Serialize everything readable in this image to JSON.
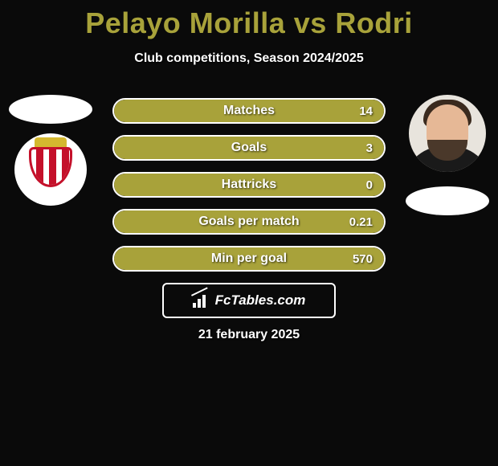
{
  "title_color": "#a8a23a",
  "background_color": "#0a0a0a",
  "bar_fill_color": "#a8a23a",
  "bar_border_color": "#ffffff",
  "text_color": "#ffffff",
  "title": "Pelayo Morilla vs Rodri",
  "subtitle": "Club competitions, Season 2024/2025",
  "stats": [
    {
      "label": "Matches",
      "value": "14",
      "fill_pct": 100
    },
    {
      "label": "Goals",
      "value": "3",
      "fill_pct": 100
    },
    {
      "label": "Hattricks",
      "value": "0",
      "fill_pct": 100
    },
    {
      "label": "Goals per match",
      "value": "0.21",
      "fill_pct": 100
    },
    {
      "label": "Min per goal",
      "value": "570",
      "fill_pct": 100
    }
  ],
  "brand": "FcTables.com",
  "date": "21 february 2025",
  "left_player": "Pelayo Morilla",
  "right_player": "Rodri",
  "club_crest_colors": {
    "stripe": "#c4102a",
    "gold": "#d4b82f",
    "field": "#ffffff"
  }
}
